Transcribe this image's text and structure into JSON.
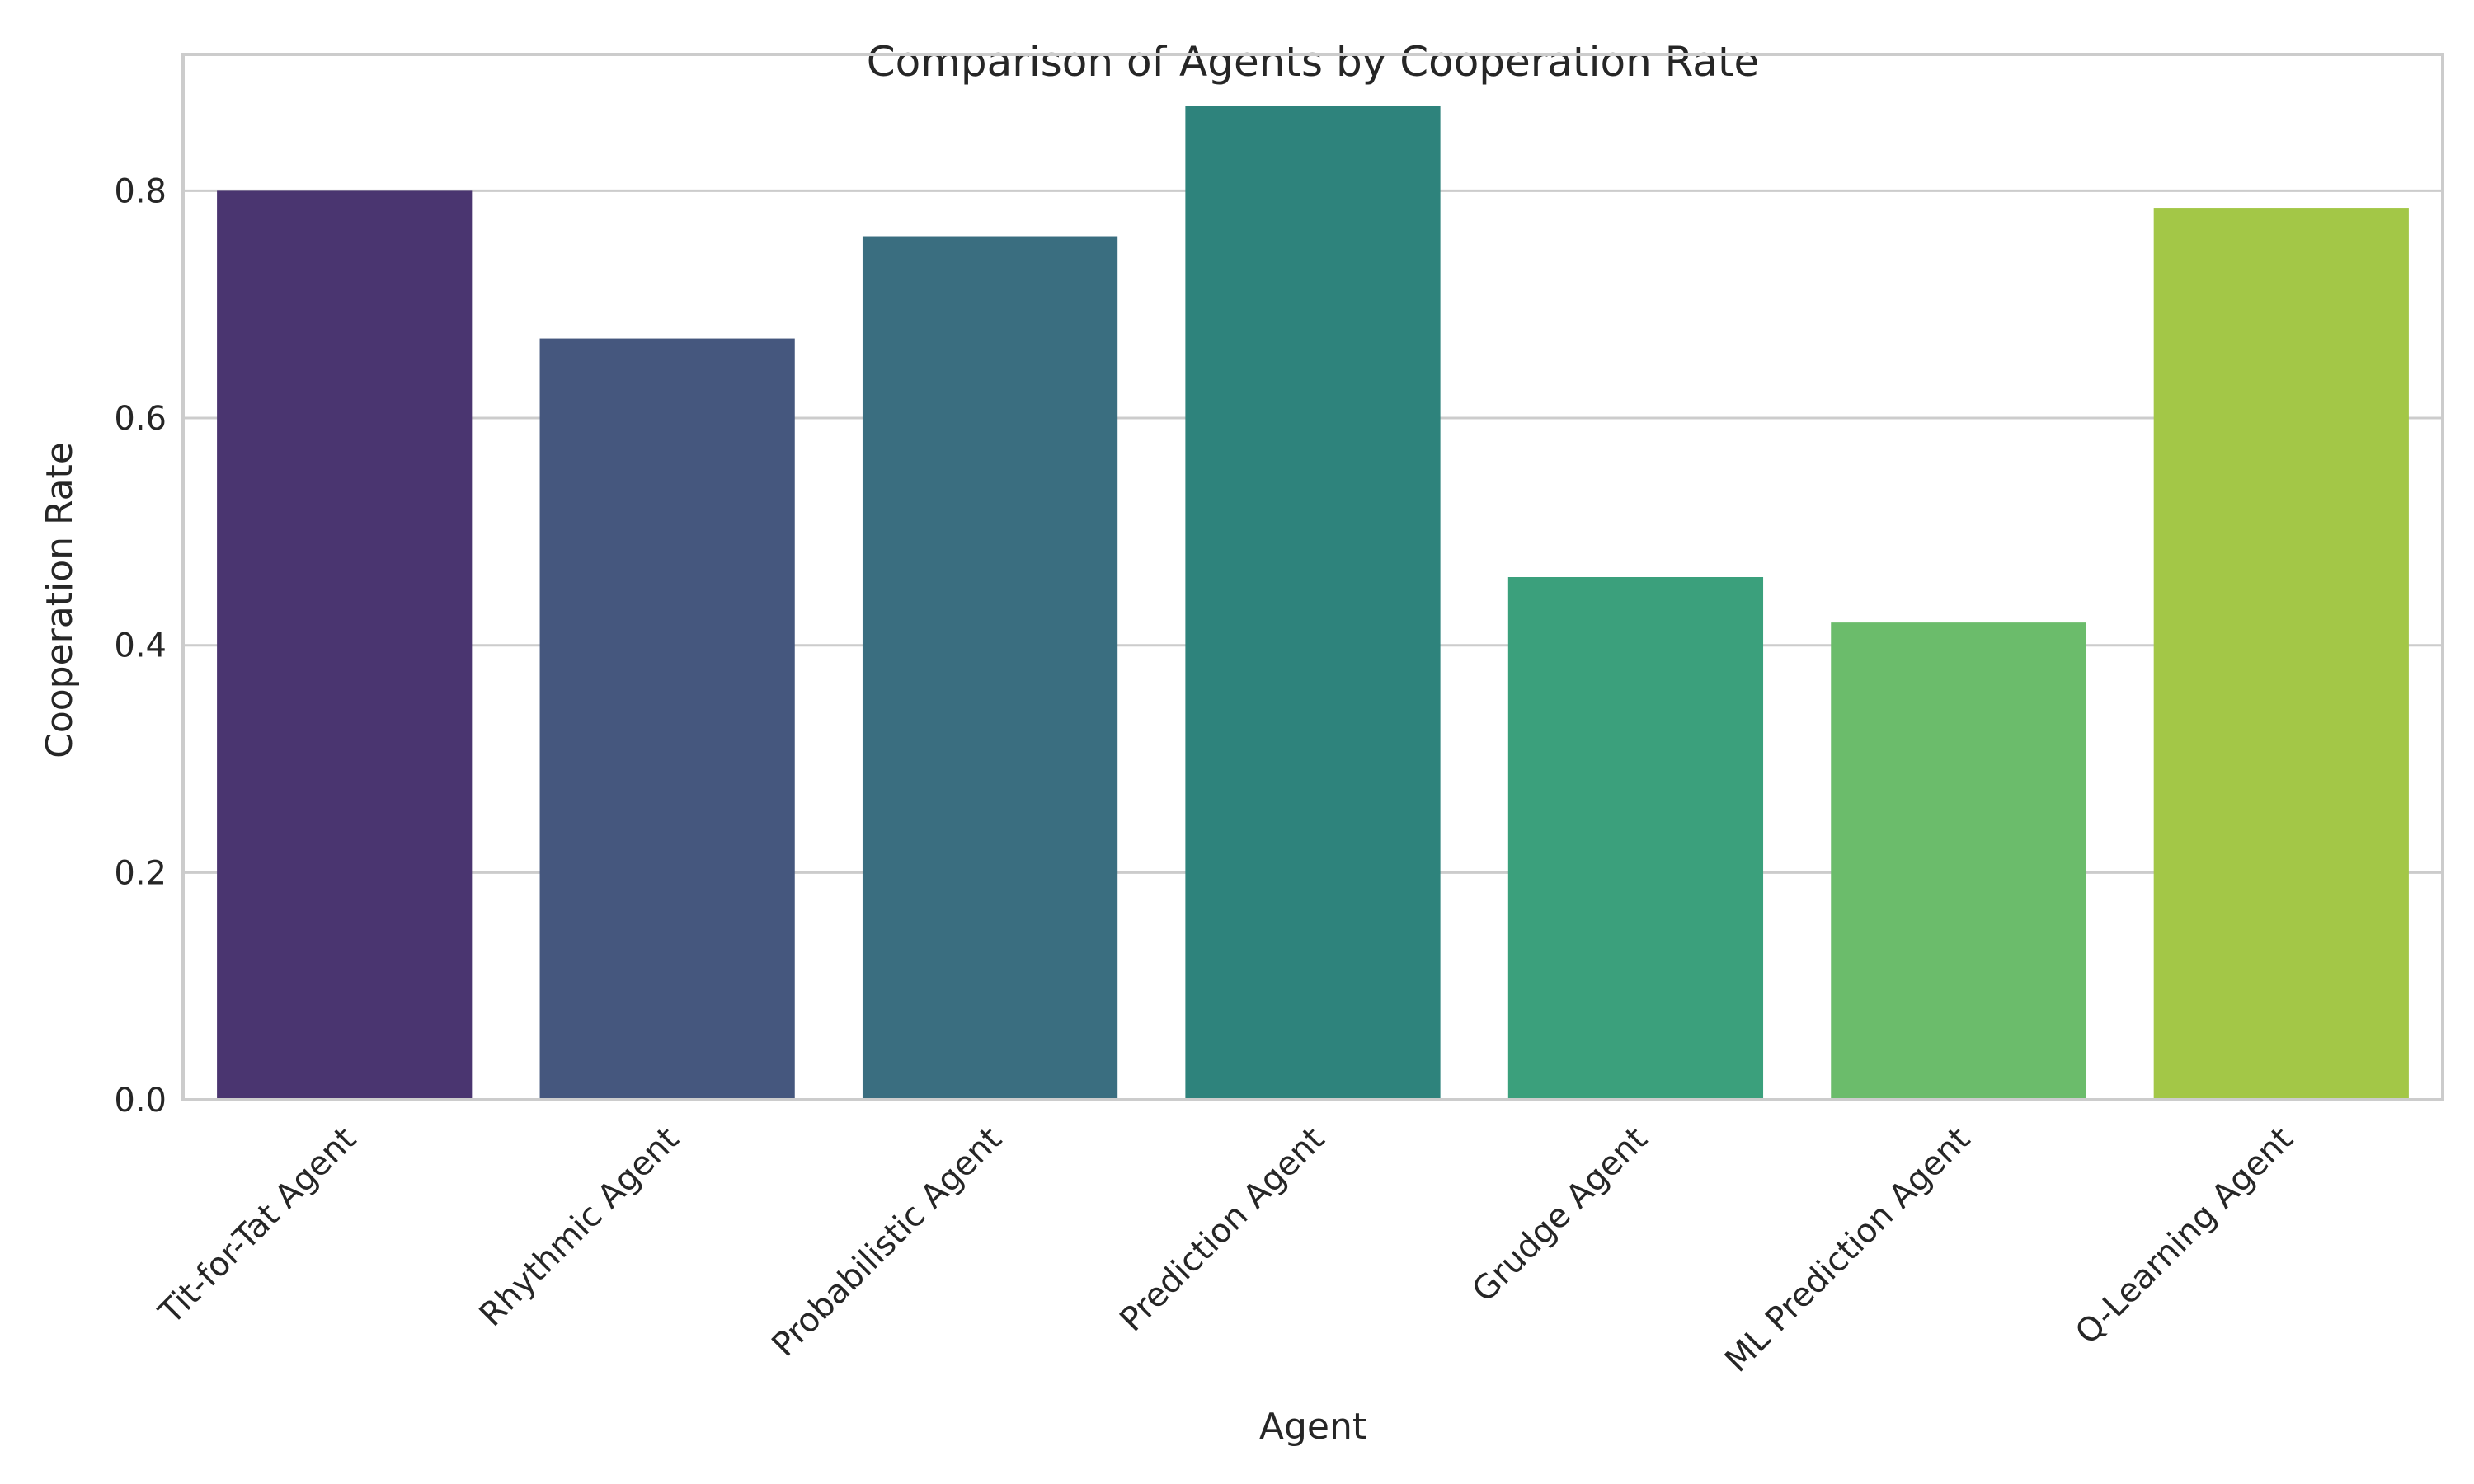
{
  "chart_data": {
    "type": "bar",
    "title": "Comparison of Agents by Cooperation Rate",
    "xlabel": "Agent",
    "ylabel": "Cooperation Rate",
    "ylim": [
      0,
      0.92
    ],
    "yticks": [
      "0.0",
      "0.2",
      "0.4",
      "0.6",
      "0.8"
    ],
    "grid": "horizontal",
    "categories": [
      "Tit-for-Tat Agent",
      "Rhythmic Agent",
      "Probabilistic Agent",
      "Prediction Agent",
      "Grudge Agent",
      "ML Prediction Agent",
      "Q-Learning Agent"
    ],
    "values": [
      0.8,
      0.67,
      0.76,
      0.875,
      0.46,
      0.42,
      0.785
    ],
    "colors": [
      "#4a3570",
      "#45577e",
      "#3a6e80",
      "#2e837c",
      "#3ba07c",
      "#6bbc6b",
      "#a3c747"
    ]
  }
}
